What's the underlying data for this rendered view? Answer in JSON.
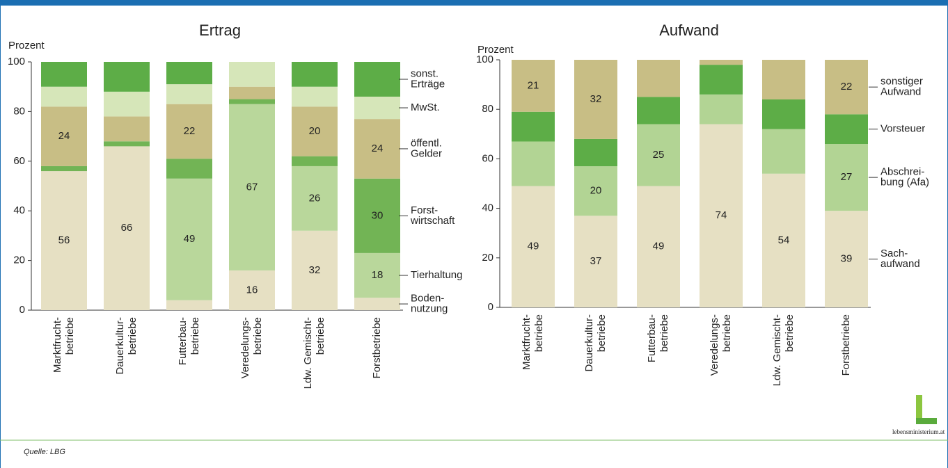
{
  "chart_data": [
    {
      "type": "bar",
      "stacked": true,
      "title": "Ertrag",
      "y_label": "Prozent",
      "categories": [
        [
          "Marktfrucht-",
          "betriebe"
        ],
        [
          "Dauerkultur-",
          "betriebe"
        ],
        [
          "Futterbau-",
          "betriebe"
        ],
        [
          "Veredelungs-",
          "betriebe"
        ],
        [
          "Ldw. Gemischt-",
          "betriebe"
        ],
        [
          "Forstbetriebe"
        ]
      ],
      "ylim": [
        0,
        100
      ],
      "yticks": [
        0,
        20,
        40,
        60,
        80,
        100
      ],
      "series": [
        {
          "name": [
            "Boden-",
            "nutzung"
          ],
          "color": "#e6e0c3",
          "values": [
            56,
            66,
            4,
            16,
            32,
            5
          ],
          "value_labels": [
            56,
            66,
            null,
            16,
            32,
            null
          ]
        },
        {
          "name": [
            "Tierhaltung"
          ],
          "color": "#b9d79b",
          "values": [
            0,
            0,
            49,
            67,
            26,
            18
          ],
          "value_labels": [
            null,
            null,
            49,
            67,
            26,
            18
          ]
        },
        {
          "name": [
            "Forst-",
            "wirtschaft"
          ],
          "color": "#72b455",
          "values": [
            2,
            2,
            8,
            2,
            4,
            30
          ],
          "value_labels": [
            null,
            null,
            null,
            null,
            null,
            30
          ]
        },
        {
          "name": [
            "öffentl.",
            "Gelder"
          ],
          "color": "#c8be85",
          "values": [
            24,
            10,
            22,
            5,
            20,
            24
          ],
          "value_labels": [
            24,
            null,
            22,
            null,
            20,
            24
          ]
        },
        {
          "name": [
            "MwSt."
          ],
          "color": "#d6e6b9",
          "values": [
            8,
            10,
            8,
            10,
            8,
            9
          ],
          "value_labels": [
            null,
            null,
            null,
            null,
            null,
            null
          ]
        },
        {
          "name": [
            "sonst.",
            "Erträge"
          ],
          "color": "#5dad47",
          "values": [
            10,
            12,
            9,
            0,
            10,
            14
          ],
          "value_labels": [
            null,
            null,
            null,
            null,
            null,
            null
          ]
        }
      ]
    },
    {
      "type": "bar",
      "stacked": true,
      "title": "Aufwand",
      "y_label": "Prozent",
      "categories": [
        [
          "Marktfrucht-",
          "betriebe"
        ],
        [
          "Dauerkultur-",
          "betriebe"
        ],
        [
          "Futterbau-",
          "betriebe"
        ],
        [
          "Veredelungs-",
          "betriebe"
        ],
        [
          "Ldw. Gemischt-",
          "betriebe"
        ],
        [
          "Forstbetriebe"
        ]
      ],
      "ylim": [
        0,
        100
      ],
      "yticks": [
        0,
        20,
        40,
        60,
        80,
        100
      ],
      "series": [
        {
          "name": [
            "Sach-",
            "aufwand"
          ],
          "color": "#e6e0c3",
          "values": [
            49,
            37,
            49,
            74,
            54,
            39
          ],
          "value_labels": [
            49,
            37,
            49,
            74,
            54,
            39
          ]
        },
        {
          "name": [
            "Abschrei-",
            "bung (Afa)"
          ],
          "color": "#b2d494",
          "values": [
            18,
            20,
            25,
            12,
            18,
            27
          ],
          "value_labels": [
            null,
            20,
            25,
            null,
            null,
            27
          ]
        },
        {
          "name": [
            "Vorsteuer"
          ],
          "color": "#5dad47",
          "values": [
            12,
            11,
            11,
            12,
            12,
            12
          ],
          "value_labels": [
            null,
            null,
            null,
            null,
            null,
            null
          ]
        },
        {
          "name": [
            "sonstiger",
            "Aufwand"
          ],
          "color": "#c8be85",
          "values": [
            21,
            32,
            15,
            2,
            16,
            22
          ],
          "value_labels": [
            21,
            32,
            null,
            null,
            null,
            22
          ]
        }
      ]
    }
  ],
  "source": "Quelle: LBG",
  "logo": "lebensministerium.at"
}
